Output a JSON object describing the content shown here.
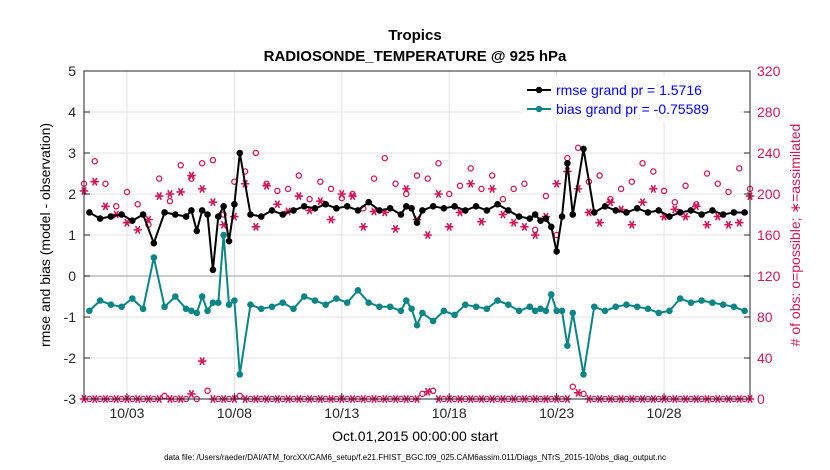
{
  "chart_data": {
    "type": "line",
    "title_line1": "Tropics",
    "title_line2": "RADIOSONDE_TEMPERATURE @ 925 hPa",
    "xlabel": "Oct.01,2015 00:00:00 start",
    "ylabel_left": "rmse and bias (model - observation)",
    "ylabel_right": "# of obs: o=possible; ∗=assimilated",
    "footer": "data file: /Users/raeder/DAI/ATM_forcXX/CAM6_setup/f.e21.FHIST_BGC.f09_025.CAM6assim.011/Diags_NTrS_2015-10/obs_diag_output.nc",
    "x_range": [
      1.0,
      32.0
    ],
    "ylim_left": [
      -3,
      5
    ],
    "ylim_right": [
      0,
      320
    ],
    "left_ticks": [
      5,
      4,
      3,
      2,
      1,
      0,
      -1,
      -2,
      -3
    ],
    "right_ticks": [
      320,
      280,
      240,
      200,
      160,
      120,
      80,
      40,
      0
    ],
    "x_ticks": [
      {
        "x": 3,
        "label": "10/03"
      },
      {
        "x": 8,
        "label": "10/08"
      },
      {
        "x": 13,
        "label": "10/13"
      },
      {
        "x": 18,
        "label": "10/18"
      },
      {
        "x": 23,
        "label": "10/23"
      },
      {
        "x": 28,
        "label": "10/28"
      }
    ],
    "zero_line": 0,
    "colors": {
      "rmse": "#000000",
      "bias": "#0b8585",
      "obs": "#d4145a",
      "zero": "#bbbbbb",
      "legend_text": "#0000ff"
    },
    "legend": [
      {
        "label": "rmse grand pr = 1.5716",
        "series": "rmse"
      },
      {
        "label": "bias grand pr = -0.75589",
        "series": "bias"
      }
    ],
    "series": [
      {
        "name": "rmse",
        "x": [
          1.25,
          1.75,
          2.25,
          2.75,
          3.25,
          3.75,
          4.25,
          4.75,
          5.25,
          5.75,
          6.0,
          6.25,
          6.5,
          6.75,
          7.0,
          7.25,
          7.5,
          7.75,
          8.0,
          8.25,
          8.75,
          9.25,
          9.75,
          10.25,
          10.75,
          11.25,
          11.75,
          12.25,
          12.75,
          13.25,
          13.75,
          14.25,
          14.75,
          15.25,
          15.75,
          16.0,
          16.25,
          16.5,
          16.75,
          17.25,
          17.75,
          18.25,
          18.75,
          19.25,
          19.75,
          20.25,
          20.75,
          21.25,
          21.75,
          22.0,
          22.25,
          22.5,
          22.75,
          23.0,
          23.25,
          23.5,
          23.75,
          24.25,
          24.75,
          25.25,
          25.75,
          26.25,
          26.75,
          27.25,
          27.75,
          28.25,
          28.75,
          29.25,
          29.75,
          30.25,
          30.75,
          31.25,
          31.75
        ],
        "values": [
          1.55,
          1.4,
          1.45,
          1.5,
          1.35,
          1.5,
          0.8,
          1.55,
          1.5,
          1.45,
          1.6,
          1.1,
          1.6,
          1.5,
          0.15,
          1.45,
          1.7,
          0.85,
          1.75,
          3.0,
          1.5,
          1.45,
          1.6,
          1.5,
          1.6,
          1.7,
          1.65,
          1.75,
          1.65,
          1.7,
          1.6,
          1.8,
          1.6,
          1.65,
          1.5,
          1.7,
          1.65,
          1.3,
          1.6,
          1.7,
          1.65,
          1.7,
          1.6,
          1.7,
          1.6,
          1.75,
          1.6,
          1.45,
          1.4,
          1.5,
          1.35,
          1.4,
          1.2,
          0.6,
          1.45,
          2.75,
          1.5,
          3.1,
          1.55,
          1.7,
          1.6,
          1.55,
          1.65,
          1.55,
          1.6,
          1.45,
          1.55,
          1.6,
          1.5,
          1.6,
          1.5,
          1.55,
          1.55
        ]
      },
      {
        "name": "bias",
        "x": [
          1.25,
          1.75,
          2.25,
          2.75,
          3.25,
          3.75,
          4.25,
          4.75,
          5.25,
          5.75,
          6.0,
          6.25,
          6.5,
          6.75,
          7.0,
          7.25,
          7.5,
          7.75,
          8.0,
          8.25,
          8.75,
          9.25,
          9.75,
          10.25,
          10.75,
          11.25,
          11.75,
          12.25,
          12.75,
          13.25,
          13.75,
          14.25,
          14.75,
          15.25,
          15.75,
          16.0,
          16.25,
          16.5,
          16.75,
          17.25,
          17.75,
          18.25,
          18.75,
          19.25,
          19.75,
          20.25,
          20.75,
          21.25,
          21.75,
          22.0,
          22.25,
          22.5,
          22.75,
          23.0,
          23.25,
          23.5,
          23.75,
          24.25,
          24.75,
          25.25,
          25.75,
          26.25,
          26.75,
          27.25,
          27.75,
          28.25,
          28.75,
          29.25,
          29.75,
          30.25,
          30.75,
          31.25,
          31.75
        ],
        "values": [
          -0.85,
          -0.6,
          -0.7,
          -0.75,
          -0.55,
          -0.8,
          0.45,
          -0.75,
          -0.5,
          -0.8,
          -0.85,
          -0.9,
          -0.5,
          -0.85,
          -0.65,
          -0.65,
          1.0,
          -0.7,
          -0.6,
          -2.4,
          -0.7,
          -0.8,
          -0.75,
          -0.65,
          -0.8,
          -0.5,
          -0.6,
          -0.7,
          -0.55,
          -0.65,
          -0.35,
          -0.65,
          -0.75,
          -0.75,
          -0.85,
          -0.6,
          -0.8,
          -1.2,
          -0.9,
          -1.1,
          -0.85,
          -0.95,
          -0.7,
          -0.75,
          -0.8,
          -0.6,
          -0.7,
          -0.85,
          -0.75,
          -0.85,
          -0.8,
          -0.85,
          -0.45,
          -0.85,
          -0.85,
          -1.7,
          -0.9,
          -2.4,
          -0.75,
          -0.85,
          -0.75,
          -0.7,
          -0.75,
          -0.8,
          -0.9,
          -0.85,
          -0.55,
          -0.65,
          -0.6,
          -0.65,
          -0.7,
          -0.75,
          -0.85
        ]
      },
      {
        "name": "possible",
        "x": [
          1.0,
          1.5,
          2.0,
          2.5,
          3.0,
          3.5,
          4.0,
          4.5,
          5.0,
          5.5,
          6.0,
          6.5,
          7.0,
          7.5,
          8.0,
          8.5,
          9.0,
          9.5,
          10.0,
          10.5,
          11.0,
          11.5,
          12.0,
          12.5,
          13.0,
          13.5,
          14.0,
          14.5,
          15.0,
          15.5,
          16.0,
          16.5,
          17.0,
          17.5,
          18.0,
          18.5,
          19.0,
          19.5,
          20.0,
          20.5,
          21.0,
          21.5,
          22.0,
          22.5,
          23.0,
          23.5,
          24.0,
          24.5,
          25.0,
          25.5,
          26.0,
          26.5,
          27.0,
          27.5,
          28.0,
          28.5,
          29.0,
          29.5,
          30.0,
          30.5,
          31.0,
          31.5,
          32.0
        ],
        "values": [
          210,
          232,
          210,
          188,
          202,
          190,
          170,
          215,
          193,
          228,
          215,
          230,
          233,
          180,
          212,
          222,
          240,
          210,
          203,
          205,
          218,
          195,
          212,
          205,
          196,
          200,
          186,
          215,
          235,
          210,
          200,
          218,
          215,
          230,
          200,
          208,
          225,
          205,
          218,
          195,
          205,
          210,
          165,
          198,
          160,
          235,
          245,
          212,
          218,
          195,
          205,
          212,
          230,
          222,
          203,
          192,
          208,
          190,
          220,
          210,
          202,
          225,
          205
        ]
      },
      {
        "name": "assimilated",
        "x": [
          1.0,
          1.5,
          2.0,
          2.5,
          3.0,
          3.5,
          4.0,
          4.5,
          5.0,
          5.5,
          6.0,
          6.5,
          7.0,
          7.5,
          8.0,
          8.5,
          9.0,
          9.5,
          10.0,
          10.5,
          11.0,
          11.5,
          12.0,
          12.5,
          13.0,
          13.5,
          14.0,
          14.5,
          15.0,
          15.5,
          16.0,
          16.5,
          17.0,
          17.5,
          18.0,
          18.5,
          19.0,
          19.5,
          20.0,
          20.5,
          21.0,
          21.5,
          22.0,
          22.5,
          23.0,
          23.5,
          24.0,
          24.5,
          25.0,
          25.5,
          26.0,
          26.5,
          27.0,
          27.5,
          28.0,
          28.5,
          29.0,
          29.5,
          30.0,
          30.5,
          31.0,
          31.5,
          32.0
        ],
        "values": [
          203,
          212,
          188,
          180,
          172,
          165,
          175,
          198,
          200,
          202,
          218,
          205,
          192,
          170,
          178,
          210,
          168,
          208,
          190,
          183,
          198,
          184,
          193,
          175,
          200,
          198,
          168,
          183,
          182,
          166,
          205,
          175,
          160,
          200,
          168,
          182,
          210,
          173,
          205,
          180,
          172,
          168,
          160,
          178,
          210,
          222,
          205,
          182,
          172,
          192,
          185,
          170,
          192,
          205,
          178,
          185,
          178,
          188,
          170,
          178,
          170,
          172,
          198
        ]
      },
      {
        "name": "possible_lower",
        "x": [
          1.25,
          1.75,
          2.25,
          2.75,
          3.25,
          3.75,
          4.25,
          4.75,
          5.25,
          5.75,
          6.25,
          6.75,
          7.25,
          7.75,
          8.25,
          8.75,
          9.25,
          9.75,
          10.25,
          10.75,
          11.25,
          11.75,
          12.25,
          12.75,
          13.25,
          13.75,
          14.25,
          14.75,
          15.25,
          15.75,
          16.25,
          16.75,
          17.25,
          17.75,
          18.25,
          18.75,
          19.25,
          19.75,
          20.25,
          20.75,
          21.25,
          21.75,
          22.25,
          22.75,
          23.25,
          23.75,
          24.25,
          24.75,
          25.25,
          25.75,
          26.25,
          26.75,
          27.25,
          27.75,
          28.25,
          28.75,
          29.25,
          29.75,
          30.25,
          30.75,
          31.25,
          31.75
        ],
        "values": [
          0,
          0,
          0,
          0,
          0,
          0,
          0,
          3,
          0,
          0,
          0,
          8,
          0,
          0,
          3,
          0,
          0,
          0,
          0,
          0,
          0,
          0,
          0,
          0,
          0,
          0,
          0,
          0,
          0,
          0,
          0,
          5,
          8,
          0,
          0,
          0,
          0,
          0,
          0,
          0,
          0,
          0,
          0,
          0,
          0,
          12,
          5,
          0,
          0,
          0,
          0,
          0,
          0,
          0,
          0,
          0,
          0,
          0,
          0,
          0,
          0,
          0
        ]
      },
      {
        "name": "assimilated_lower",
        "x": [
          1.0,
          1.5,
          2.0,
          2.5,
          3.0,
          3.5,
          4.0,
          4.5,
          5.0,
          5.5,
          6.0,
          6.5,
          7.0,
          7.5,
          8.0,
          8.5,
          9.0,
          9.5,
          10.0,
          10.5,
          11.0,
          11.5,
          12.0,
          12.5,
          13.0,
          13.5,
          14.0,
          14.5,
          15.0,
          15.5,
          16.0,
          16.5,
          17.0,
          17.5,
          18.0,
          18.5,
          19.0,
          19.5,
          20.0,
          20.5,
          21.0,
          21.5,
          22.0,
          22.5,
          23.0,
          23.5,
          24.0,
          24.5,
          25.0,
          25.5,
          26.0,
          26.5,
          27.0,
          27.5,
          28.0,
          28.5,
          29.0,
          29.5,
          30.0,
          30.5,
          31.0,
          31.5,
          32.0
        ],
        "values": [
          0,
          0,
          0,
          0,
          0,
          0,
          0,
          0,
          0,
          0,
          5,
          37,
          0,
          0,
          0,
          0,
          0,
          0,
          0,
          0,
          0,
          0,
          0,
          0,
          0,
          0,
          0,
          0,
          0,
          0,
          0,
          0,
          7,
          0,
          0,
          0,
          0,
          0,
          0,
          0,
          0,
          0,
          0,
          0,
          0,
          0,
          6,
          0,
          0,
          0,
          0,
          0,
          0,
          0,
          0,
          0,
          0,
          0,
          0,
          0,
          0,
          0,
          0
        ]
      }
    ]
  }
}
